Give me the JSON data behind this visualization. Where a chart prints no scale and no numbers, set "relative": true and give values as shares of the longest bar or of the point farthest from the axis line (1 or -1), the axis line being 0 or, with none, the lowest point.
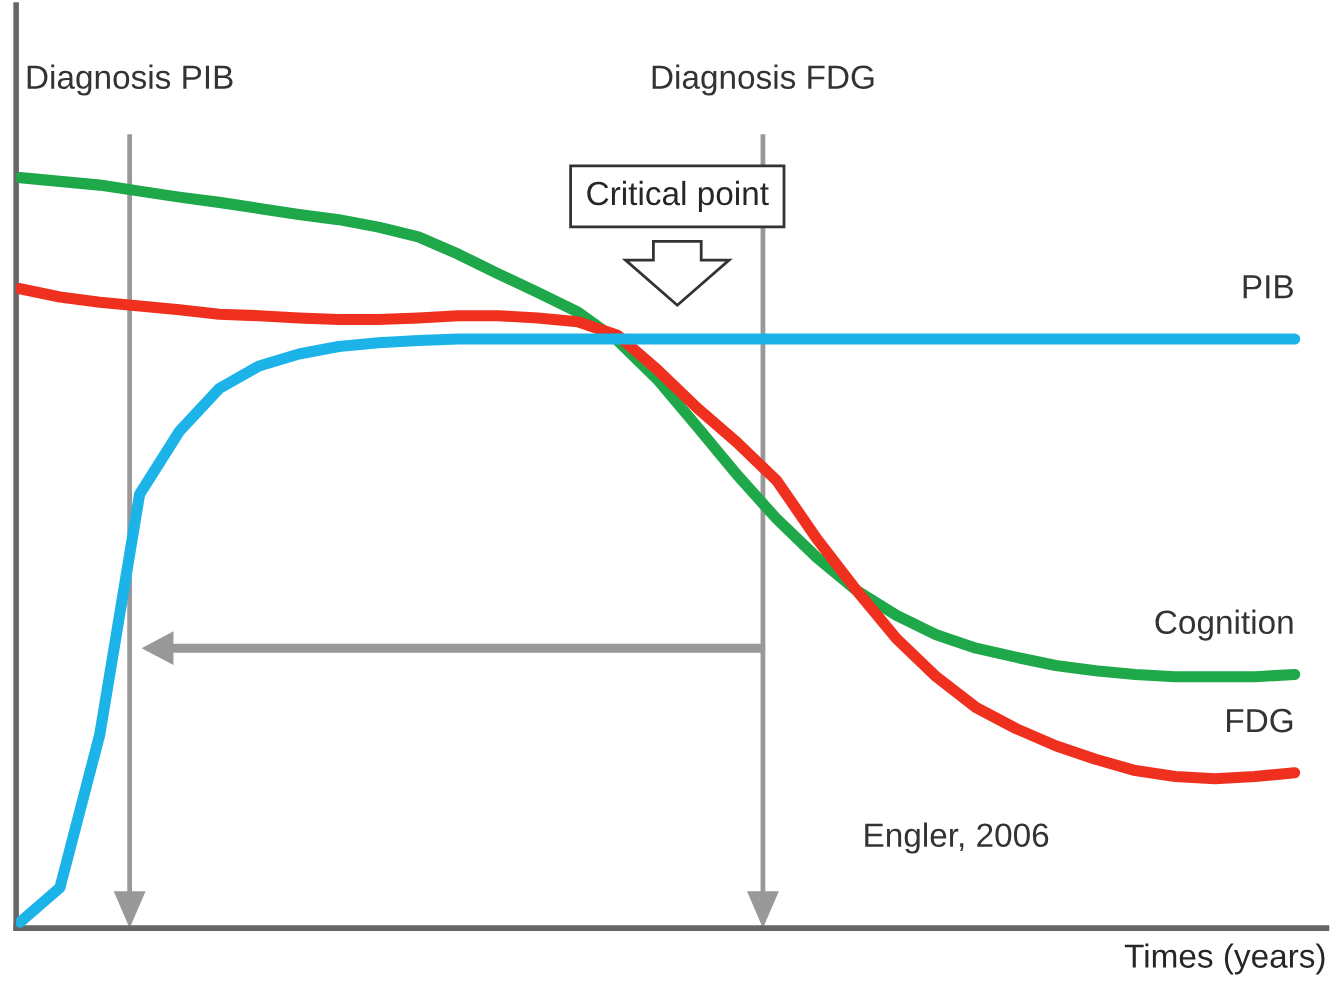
{
  "chart_data": {
    "type": "line",
    "relative": true,
    "xlabel": "Times (years)",
    "categories": [
      null,
      null,
      null,
      null,
      null,
      null,
      null,
      null,
      null,
      null,
      null,
      null,
      null,
      null,
      null,
      null,
      null,
      null,
      null,
      null,
      null,
      null,
      null,
      null,
      null,
      null,
      null,
      null,
      null,
      null,
      null,
      null,
      null
    ],
    "series": [
      {
        "name": "Cognition",
        "color": "#1fa84a",
        "values": [
          1.0,
          0.995,
          0.99,
          0.982,
          0.974,
          0.967,
          0.959,
          0.951,
          0.944,
          0.934,
          0.921,
          0.898,
          0.872,
          0.847,
          0.821,
          0.783,
          0.731,
          0.668,
          0.604,
          0.545,
          0.494,
          0.45,
          0.417,
          0.391,
          0.373,
          0.361,
          0.35,
          0.343,
          0.338,
          0.335,
          0.335,
          0.335,
          0.338
        ]
      },
      {
        "name": "FDG",
        "color": "#f0301e",
        "values": [
          0.852,
          0.841,
          0.834,
          0.829,
          0.824,
          0.818,
          0.816,
          0.813,
          0.811,
          0.811,
          0.813,
          0.816,
          0.816,
          0.813,
          0.808,
          0.79,
          0.744,
          0.693,
          0.647,
          0.596,
          0.519,
          0.45,
          0.386,
          0.335,
          0.294,
          0.266,
          0.243,
          0.225,
          0.21,
          0.202,
          0.199,
          0.202,
          0.207
        ]
      },
      {
        "name": "PIB",
        "color": "#1cb4e8",
        "values": [
          0.008,
          0.054,
          0.258,
          0.578,
          0.662,
          0.719,
          0.749,
          0.765,
          0.775,
          0.78,
          0.783,
          0.785,
          0.785,
          0.785,
          0.785,
          0.785,
          0.785,
          0.785,
          0.785,
          0.785,
          0.785,
          0.785,
          0.785,
          0.785,
          0.785,
          0.785,
          0.785,
          0.785,
          0.785,
          0.785,
          0.785,
          0.785,
          0.785
        ]
      }
    ],
    "annotations": [
      "Diagnosis PIB",
      "Diagnosis FDG",
      "Critical point",
      "Engler, 2006"
    ],
    "grid": false,
    "legend": false,
    "marker": "none",
    "line_style": "solid"
  }
}
